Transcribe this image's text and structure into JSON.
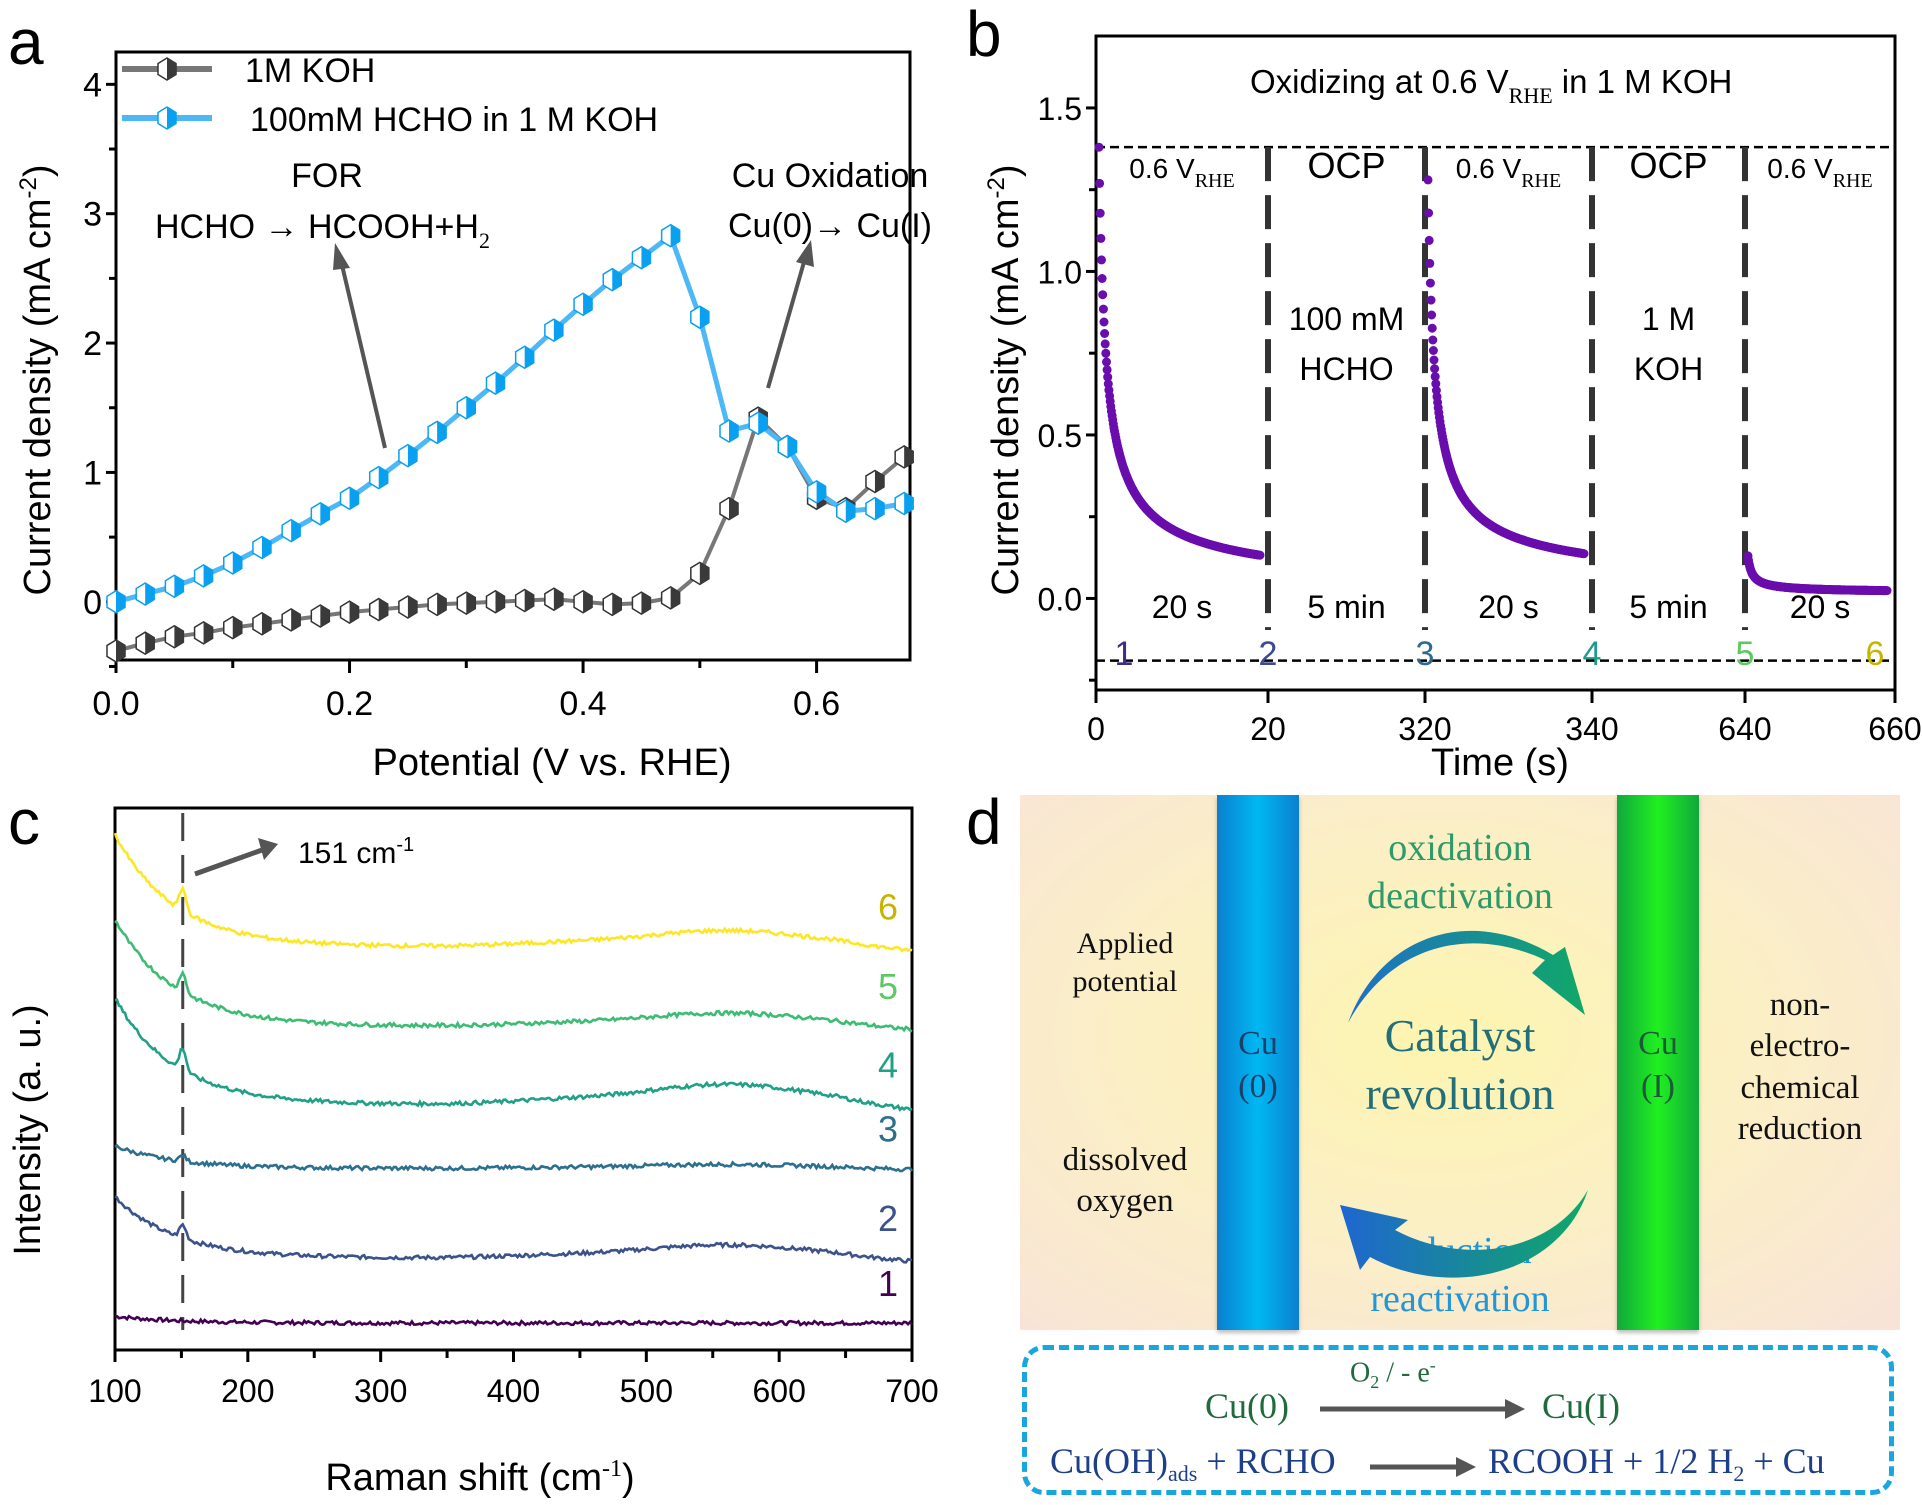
{
  "panels": {
    "a": {
      "letter": "a"
    },
    "b": {
      "letter": "b"
    },
    "c": {
      "letter": "c"
    },
    "d": {
      "letter": "d"
    }
  },
  "chart_data": [
    {
      "id": "a",
      "type": "line",
      "title": "",
      "xlabel": "Potential (V vs. RHE)",
      "ylabel": "Current density  (mA cm-2)",
      "ylabel_main": "Current density  (mA cm",
      "ylabel_sup": "-2",
      "ylabel_close": ")",
      "xlim": [
        0.0,
        0.68
      ],
      "ylim": [
        -0.45,
        4.25
      ],
      "xticks": [
        0.0,
        0.2,
        0.4,
        0.6
      ],
      "xtick_labels": [
        "0.0",
        "0.2",
        "0.4",
        "0.6"
      ],
      "yticks": [
        0,
        1,
        2,
        3,
        4
      ],
      "ytick_labels": [
        "0",
        "1",
        "2",
        "3",
        "4"
      ],
      "legend_position": "top-left",
      "series": [
        {
          "name": "1M KOH",
          "color": "#777777",
          "marker_color": "#3a3a3a",
          "x": [
            0.0,
            0.025,
            0.05,
            0.075,
            0.1,
            0.125,
            0.15,
            0.175,
            0.2,
            0.225,
            0.25,
            0.275,
            0.3,
            0.325,
            0.35,
            0.375,
            0.4,
            0.425,
            0.45,
            0.475,
            0.5,
            0.525,
            0.55,
            0.575,
            0.6,
            0.625,
            0.65,
            0.675
          ],
          "y": [
            -0.38,
            -0.32,
            -0.27,
            -0.24,
            -0.2,
            -0.17,
            -0.14,
            -0.11,
            -0.08,
            -0.06,
            -0.04,
            -0.02,
            -0.01,
            0.0,
            0.01,
            0.02,
            0.0,
            -0.02,
            -0.01,
            0.03,
            0.22,
            0.72,
            1.42,
            1.2,
            0.8,
            0.72,
            0.93,
            1.12
          ]
        },
        {
          "name": "100mM HCHO in 1 M KOH",
          "color": "#4db8f5",
          "marker_color": "#0aa0f0",
          "x": [
            0.0,
            0.025,
            0.05,
            0.075,
            0.1,
            0.125,
            0.15,
            0.175,
            0.2,
            0.225,
            0.25,
            0.275,
            0.3,
            0.325,
            0.35,
            0.375,
            0.4,
            0.425,
            0.45,
            0.475,
            0.5,
            0.525,
            0.55,
            0.575,
            0.6,
            0.625,
            0.65,
            0.675
          ],
          "y": [
            0.0,
            0.06,
            0.12,
            0.2,
            0.3,
            0.42,
            0.55,
            0.68,
            0.8,
            0.96,
            1.13,
            1.31,
            1.5,
            1.69,
            1.89,
            2.1,
            2.3,
            2.49,
            2.66,
            2.83,
            2.2,
            1.32,
            1.38,
            1.2,
            0.85,
            0.7,
            0.72,
            0.76
          ]
        }
      ],
      "annotations": [
        {
          "text": "FOR",
          "x": 0.18,
          "y": 3.33
        },
        {
          "text": "HCHO → HCOOH+H",
          "sub": "2",
          "x": 0.13,
          "y": 2.88
        },
        {
          "text": "Cu Oxidation",
          "x": 0.61,
          "y": 3.33
        },
        {
          "text": "Cu(0)→ Cu(I)",
          "x": 0.61,
          "y": 2.9
        }
      ]
    },
    {
      "id": "b",
      "type": "scatter",
      "xlabel": "Time (s)",
      "ylabel_main": "Current density  (mA cm",
      "ylabel_sup": "-2",
      "ylabel_close": ")",
      "ylim": [
        -0.28,
        1.72
      ],
      "xtick_labels": [
        "0",
        "20",
        "320",
        "340",
        "640",
        "660"
      ],
      "yticks": [
        0.0,
        0.5,
        1.0,
        1.5
      ],
      "ytick_labels": [
        "0.0",
        "0.5",
        "1.0",
        "1.5"
      ],
      "title": "Oxidizing at 0.6 V",
      "title_sub": "RHE",
      "title_suffix": " in 1 M KOH",
      "color": "#6a0dad",
      "segments": [
        {
          "label": "0.6 V",
          "label_sub": "RHE",
          "duration": "20 s",
          "start_marker": "1",
          "t0": 0,
          "t1": 20,
          "i0": 1.38,
          "i_end": 0.07,
          "tau": 2.2
        },
        {
          "label": "OCP",
          "duration": "5 min",
          "note": [
            "100 mM",
            "HCHO"
          ],
          "start_marker": "2"
        },
        {
          "label": "0.6 V",
          "label_sub": "RHE",
          "duration": "20 s",
          "start_marker": "3",
          "t0": 320,
          "t1": 340,
          "i0": 1.28,
          "i_end": 0.08,
          "tau": 2.2
        },
        {
          "label": "OCP",
          "duration": "5 min",
          "note": [
            "1 M",
            "KOH"
          ],
          "start_marker": "4"
        },
        {
          "label": "0.6 V",
          "label_sub": "RHE",
          "duration": "20 s",
          "start_marker": "5",
          "t0": 640,
          "t1": 660,
          "i0": 0.13,
          "i_end": 0.02,
          "tau": 1.5
        }
      ],
      "end_marker": "6",
      "marker_colors": [
        "#3f2a86",
        "#3c4a91",
        "#2f6a8e",
        "#22998a",
        "#5ec962",
        "#c8b400"
      ]
    },
    {
      "id": "c",
      "type": "line",
      "xlabel": "Raman shift  (cm-1)",
      "xlabel_main": "Raman shift  (cm",
      "xlabel_sup": "-1",
      "xlabel_close": ")",
      "ylabel": "Intensity (a. u.)",
      "xlim": [
        100,
        700
      ],
      "xticks": [
        100,
        200,
        300,
        400,
        500,
        600,
        700
      ],
      "xtick_labels": [
        "100",
        "200",
        "300",
        "400",
        "500",
        "600",
        "700"
      ],
      "peak_annotation": {
        "text": "151 cm",
        "sup": "-1",
        "x": 151
      },
      "series": [
        {
          "name": "1",
          "color": "#440154",
          "offset": 0.0,
          "start_rise": 0.06,
          "peak": 0.0,
          "hump": 0.0
        },
        {
          "name": "2",
          "color": "#3b528b",
          "offset": 0.58,
          "start_rise": 0.55,
          "peak": 0.12,
          "hump": 0.13
        },
        {
          "name": "3",
          "color": "#2c6f8e",
          "offset": 1.38,
          "start_rise": 0.2,
          "peak": 0.05,
          "hump": 0.04
        },
        {
          "name": "4",
          "color": "#21a088",
          "offset": 1.95,
          "start_rise": 0.95,
          "peak": 0.2,
          "hump": 0.2
        },
        {
          "name": "5",
          "color": "#3dbc74",
          "offset": 2.65,
          "start_rise": 0.95,
          "peak": 0.17,
          "hump": 0.13
        },
        {
          "name": "6",
          "color": "#fde725",
          "offset": 3.36,
          "start_rise": 1.0,
          "peak": 0.2,
          "hump": 0.16
        }
      ],
      "label_colors": [
        "#440154",
        "#3b528b",
        "#2c6f8e",
        "#21a088",
        "#5ec962",
        "#c8b400"
      ]
    }
  ],
  "diagram_d": {
    "left_top": [
      "Applied",
      "potential"
    ],
    "left_bottom": [
      "dissolved",
      "oxygen"
    ],
    "bar_left": [
      "Cu",
      "(0)"
    ],
    "bar_right": [
      "Cu",
      "(I)"
    ],
    "top_arrow": [
      "oxidation",
      "deactivation"
    ],
    "center": [
      "Catalyst",
      "revolution"
    ],
    "bottom_arrow": [
      "reduction",
      "reactivation"
    ],
    "right": [
      "non-",
      "electro-",
      "chemical",
      "reduction"
    ],
    "eq1": {
      "left": "Cu(0)",
      "over": "O",
      "over_sub": "2",
      "over_rest": "  /   - e",
      "over_sup": "-",
      "right": "Cu(I)"
    },
    "eq2": {
      "left": "Cu(OH)",
      "left_sub": "ads",
      "plus": " + RCHO",
      "right": "RCOOH + 1/2 H",
      "right_sub": "2",
      "right_end": " + Cu"
    },
    "colors": {
      "green_text": "#2e9a6a",
      "teal_text": "#226f7a",
      "blue_text": "#2196d8",
      "eq1": "#1f6b3e",
      "eq2": "#1d3f8a",
      "box": "#18a6dc"
    }
  }
}
